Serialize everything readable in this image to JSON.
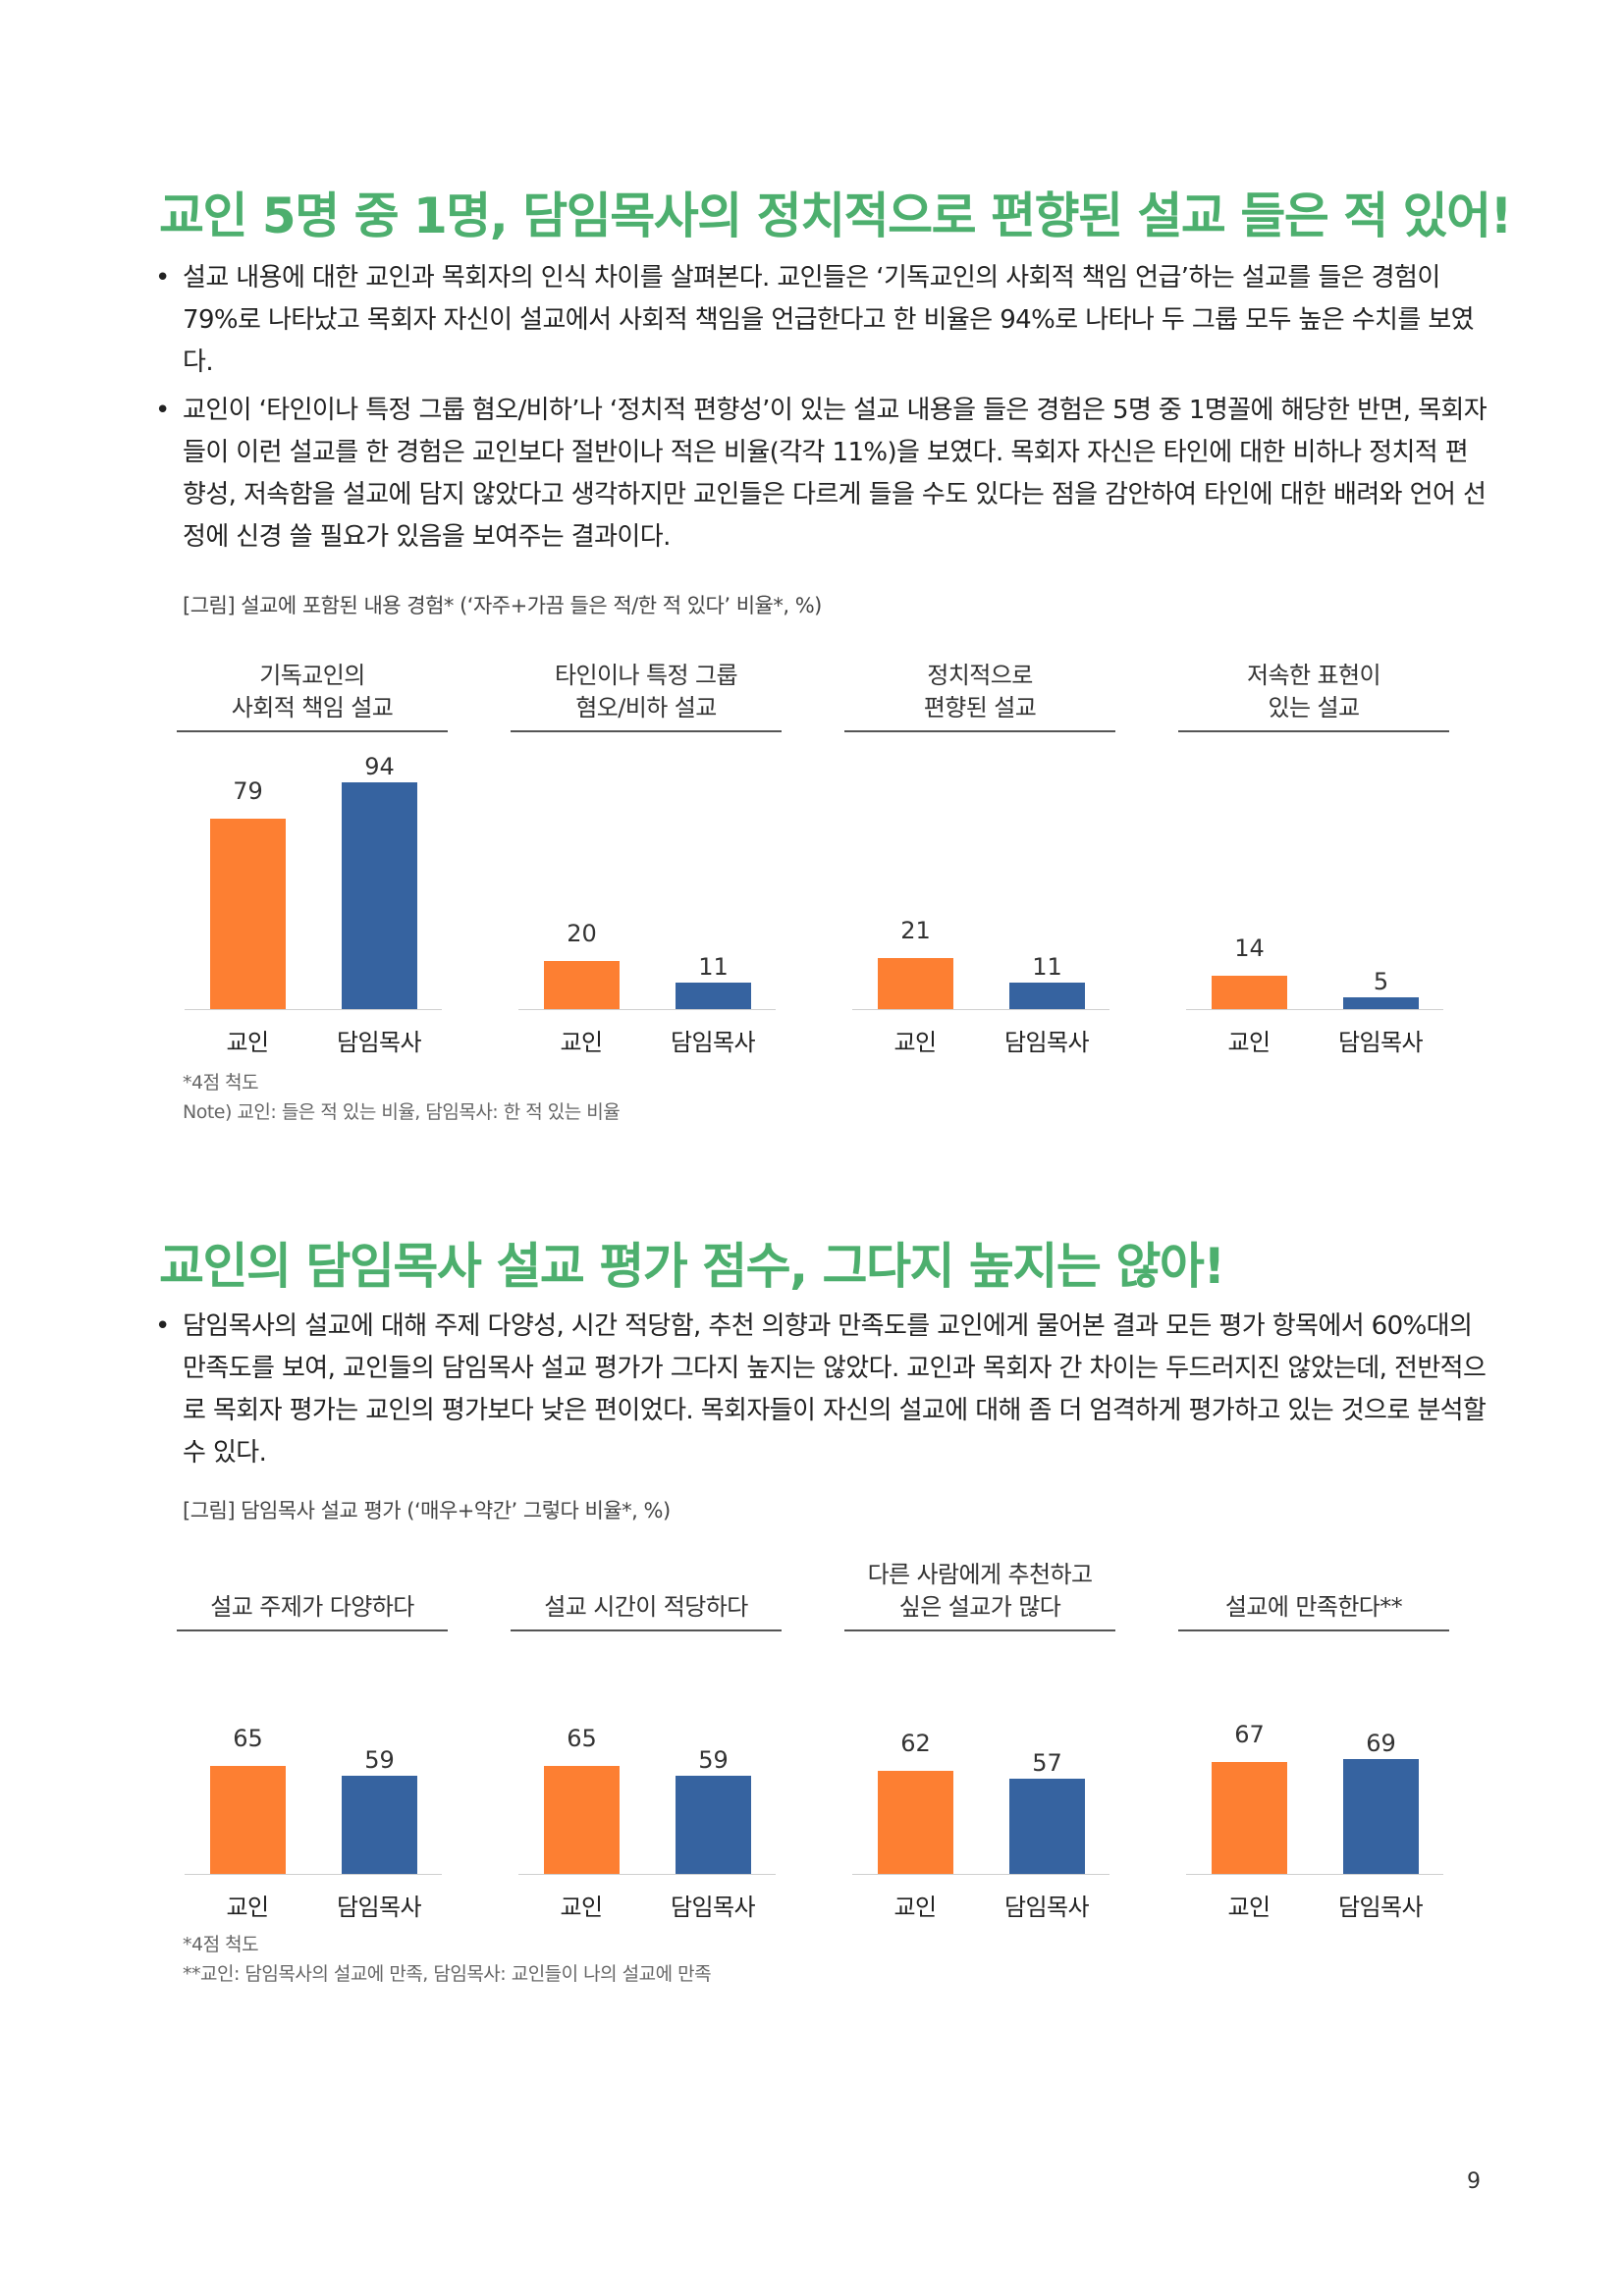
{
  "section1": {
    "title": "교인 5명 중 1명, 담임목사의 정치적으로 편향된 설교 들은 적 있어!",
    "bullets": [
      "설교 내용에 대한 교인과 목회자의 인식 차이를 살펴본다. 교인들은 ‘기독교인의 사회적 책임 언급’하는 설교를 들은 경험이 79%로 나타났고 목회자 자신이 설교에서 사회적 책임을 언급한다고 한 비율은 94%로 나타나 두 그룹 모두 높은 수치를 보였다.",
      "교인이 ‘타인이나 특정 그룹 혐오/비하’나 ‘정치적 편향성’이 있는 설교 내용을 들은 경험은 5명 중 1명꼴에 해당한 반면, 목회자들이 이런 설교를 한 경험은 교인보다 절반이나 적은 비율(각각 11%)을 보였다. 목회자 자신은 타인에 대한 비하나 정치적 편향성, 저속함을 설교에 담지 않았다고 생각하지만 교인들은 다르게 들을 수도 있다는 점을 감안하여 타인에 대한 배려와 언어 선정에 신경 쓸 필요가 있음을 보여주는 결과이다."
    ],
    "figure_caption": "[그림] 설교에 포함된 내용 경험* (‘자주+가끔 들은 적/한 적 있다’ 비율*, %)",
    "notes": [
      "*4점 척도",
      "Note) 교인: 들은 적 있는 비율, 담임목사: 한 적 있는 비율"
    ]
  },
  "section2": {
    "title": "교인의 담임목사 설교 평가 점수, 그다지 높지는 않아!",
    "bullets": [
      "담임목사의 설교에 대해 주제 다양성, 시간 적당함, 추천 의향과 만족도를 교인에게 물어본 결과 모든 평가 항목에서 60%대의 만족도를 보여, 교인들의 담임목사 설교 평가가 그다지 높지는 않았다. 교인과 목회자 간 차이는 두드러지진 않았는데, 전반적으로 목회자 평가는 교인의 평가보다 낮은 편이었다. 목회자들이 자신의 설교에 대해 좀 더 엄격하게 평가하고 있는 것으로 분석할 수 있다."
    ],
    "figure_caption": "[그림] 담임목사 설교 평가 (‘매우+약간’ 그렇다 비율*, %)",
    "notes": [
      "*4점 척도",
      "**교인: 담임목사의 설교에 만족, 담임목사: 교인들이 나의 설교에 만족"
    ]
  },
  "page_number": "9",
  "chart_data": [
    {
      "type": "bar",
      "categories": [
        "교인",
        "담임목사"
      ],
      "panels": [
        {
          "title": [
            "기독교인의",
            "사회적 책임 설교"
          ],
          "values": [
            79,
            94
          ]
        },
        {
          "title": [
            "타인이나 특정 그룹",
            "혐오/비하 설교"
          ],
          "values": [
            20,
            11
          ]
        },
        {
          "title": [
            "정치적으로",
            "편향된 설교"
          ],
          "values": [
            21,
            11
          ]
        },
        {
          "title": [
            "저속한 표현이",
            "있는 설교"
          ],
          "values": [
            14,
            5
          ]
        }
      ],
      "colors": {
        "교인": "#fd7f32",
        "담임목사": "#3663a0"
      },
      "ylim": [
        0,
        100
      ]
    },
    {
      "type": "bar",
      "categories": [
        "교인",
        "담임목사"
      ],
      "panels": [
        {
          "title": [
            "설교 주제가 다양하다"
          ],
          "values": [
            65,
            59
          ]
        },
        {
          "title": [
            "설교 시간이 적당하다"
          ],
          "values": [
            65,
            59
          ]
        },
        {
          "title": [
            "다른 사람에게 추천하고",
            "싶은 설교가 많다"
          ],
          "values": [
            62,
            57
          ]
        },
        {
          "title": [
            "설교에 만족한다**"
          ],
          "values": [
            67,
            69
          ]
        }
      ],
      "colors": {
        "교인": "#fd7f32",
        "담임목사": "#3663a0"
      },
      "ylim": [
        0,
        100
      ]
    }
  ]
}
